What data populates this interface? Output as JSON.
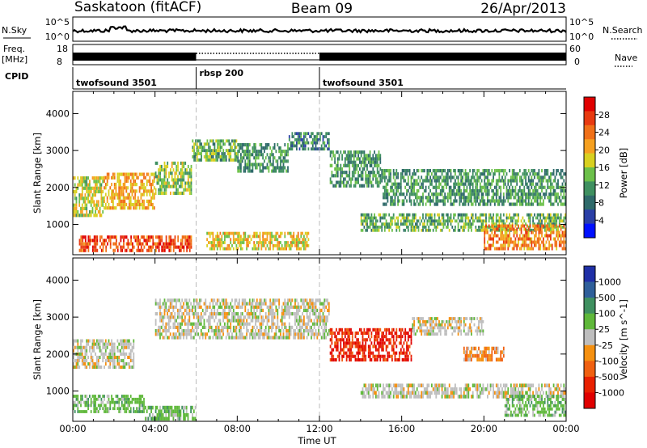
{
  "header": {
    "station": "Saskatoon (fitACF)",
    "beam": "Beam 09",
    "date": "26/Apr/2013"
  },
  "top_panels": {
    "nsky_label": "N.Sky",
    "nsky_ticks": [
      "10^5",
      "10^0"
    ],
    "nsearch_label": "N.Search",
    "nsearch_ticks": [
      "10^5",
      "10^0"
    ],
    "freq_label": "Freq.",
    "freq_unit": "[MHz]",
    "freq_ticks": [
      "18",
      "8"
    ],
    "nave_label": "Nave",
    "nave_ticks": [
      "60",
      "0"
    ],
    "cpid_label": "CPID",
    "cpid_segments": [
      {
        "label": "twofsound 3501",
        "start_hour": 0,
        "end_hour": 6
      },
      {
        "label": "rbsp 200",
        "start_hour": 6,
        "end_hour": 12
      },
      {
        "label": "twofsound 3501",
        "start_hour": 12,
        "end_hour": 24
      }
    ]
  },
  "chart_data": [
    {
      "type": "heatmap",
      "panel": "power",
      "ylabel": "Slant Range [km]",
      "xlabel": "",
      "x_ticks": [
        "00:00",
        "04:00",
        "08:00",
        "12:00",
        "16:00",
        "20:00",
        "00:00"
      ],
      "y_ticks": [
        "1000",
        "2000",
        "3000",
        "4000"
      ],
      "xlim_hours": [
        0,
        24
      ],
      "ylim_km": [
        180,
        4600
      ],
      "colorbar": {
        "label": "Power [dB]",
        "ticks": [
          "4",
          "8",
          "12",
          "16",
          "20",
          "24",
          "28"
        ],
        "range": [
          0,
          30
        ],
        "colors": [
          "#0010ff",
          "#2a3fa6",
          "#2f6a6a",
          "#3f9060",
          "#6cc04a",
          "#d8d020",
          "#f5a020",
          "#f07018",
          "#e83a10",
          "#e00000"
        ]
      },
      "regions": [
        {
          "t0": 0.0,
          "t1": 1.5,
          "r0": 1200,
          "r1": 2300,
          "level": 16
        },
        {
          "t0": 1.5,
          "t1": 4.0,
          "r0": 1400,
          "r1": 2400,
          "level": 20
        },
        {
          "t0": 0.3,
          "t1": 5.8,
          "r0": 250,
          "r1": 700,
          "level": 26
        },
        {
          "t0": 4.0,
          "t1": 5.8,
          "r0": 1800,
          "r1": 2700,
          "level": 14
        },
        {
          "t0": 5.8,
          "t1": 8.0,
          "r0": 2700,
          "r1": 3300,
          "level": 12
        },
        {
          "t0": 8.0,
          "t1": 10.5,
          "r0": 2400,
          "r1": 3200,
          "level": 10
        },
        {
          "t0": 10.5,
          "t1": 12.5,
          "r0": 3000,
          "r1": 3500,
          "level": 8
        },
        {
          "t0": 6.5,
          "t1": 11.5,
          "r0": 300,
          "r1": 800,
          "level": 18
        },
        {
          "t0": 12.5,
          "t1": 15.0,
          "r0": 2000,
          "r1": 3000,
          "level": 10
        },
        {
          "t0": 14.0,
          "t1": 24.0,
          "r0": 800,
          "r1": 1300,
          "level": 12
        },
        {
          "t0": 15.0,
          "t1": 24.0,
          "r0": 1500,
          "r1": 2500,
          "level": 10
        },
        {
          "t0": 20.0,
          "t1": 24.0,
          "r0": 300,
          "r1": 1000,
          "level": 22
        }
      ]
    },
    {
      "type": "heatmap",
      "panel": "velocity",
      "ylabel": "Slant Range [km]",
      "xlabel": "Time UT",
      "x_ticks": [
        "00:00",
        "04:00",
        "08:00",
        "12:00",
        "16:00",
        "20:00",
        "00:00"
      ],
      "y_ticks": [
        "1000",
        "2000",
        "3000",
        "4000"
      ],
      "xlim_hours": [
        0,
        24
      ],
      "ylim_km": [
        180,
        4600
      ],
      "colorbar": {
        "label": "Velocity [m s^-1]",
        "ticks": [
          "1000",
          "500",
          "100",
          "25",
          "-25",
          "-100",
          "-500",
          "-1000"
        ],
        "colors": [
          "#1f2fa6",
          "#2f5f9a",
          "#3f9060",
          "#5fb83a",
          "#bebebe",
          "#f59010",
          "#f06010",
          "#e82000",
          "#e00000"
        ]
      },
      "regions": [
        {
          "t0": 0.0,
          "t1": 3.0,
          "r0": 1600,
          "r1": 2400,
          "level": "gray"
        },
        {
          "t0": 0.0,
          "t1": 3.5,
          "r0": 400,
          "r1": 900,
          "level": "green"
        },
        {
          "t0": 3.5,
          "t1": 6.0,
          "r0": 200,
          "r1": 600,
          "level": "green"
        },
        {
          "t0": 4.0,
          "t1": 12.5,
          "r0": 2400,
          "r1": 3500,
          "level": "gray"
        },
        {
          "t0": 12.5,
          "t1": 16.5,
          "r0": 1800,
          "r1": 2700,
          "level": "red"
        },
        {
          "t0": 16.5,
          "t1": 20.0,
          "r0": 2500,
          "r1": 3000,
          "level": "gray"
        },
        {
          "t0": 19.0,
          "t1": 21.0,
          "r0": 1800,
          "r1": 2200,
          "level": "orange"
        },
        {
          "t0": 14.0,
          "t1": 24.0,
          "r0": 800,
          "r1": 1200,
          "level": "gray"
        },
        {
          "t0": 21.0,
          "t1": 24.0,
          "r0": 300,
          "r1": 900,
          "level": "green"
        }
      ]
    }
  ]
}
